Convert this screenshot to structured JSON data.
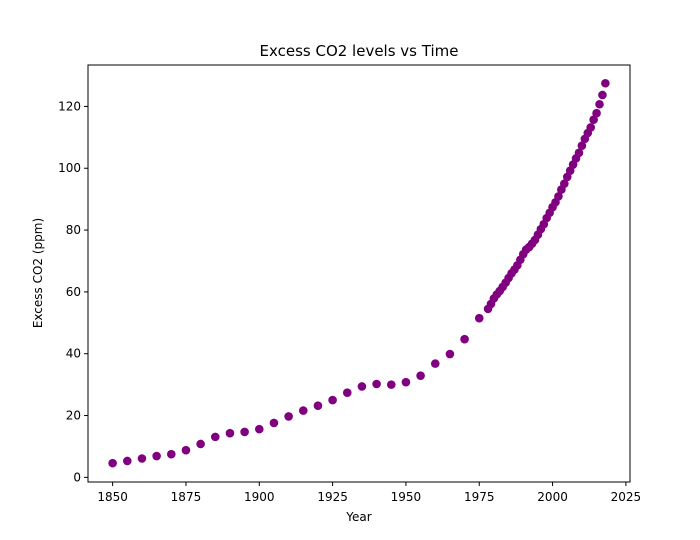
{
  "chart_data": {
    "type": "scatter",
    "title": "Excess CO2 levels vs Time",
    "xlabel": "Year",
    "ylabel": "Excess CO2 (ppm)",
    "xlim": [
      1841.6,
      2026.4
    ],
    "ylim": [
      -1.5,
      133.4
    ],
    "xticks": [
      1850,
      1875,
      1900,
      1925,
      1950,
      1975,
      2000,
      2025
    ],
    "yticks": [
      0,
      20,
      40,
      60,
      80,
      100,
      120
    ],
    "grid": false,
    "legend": "none",
    "marker_color": "#800080",
    "points": [
      [
        1850,
        4.6
      ],
      [
        1855,
        5.3
      ],
      [
        1860,
        6.1
      ],
      [
        1865,
        6.9
      ],
      [
        1870,
        7.5
      ],
      [
        1875,
        8.8
      ],
      [
        1880,
        10.8
      ],
      [
        1885,
        13.1
      ],
      [
        1890,
        14.3
      ],
      [
        1895,
        14.7
      ],
      [
        1900,
        15.6
      ],
      [
        1905,
        17.6
      ],
      [
        1910,
        19.7
      ],
      [
        1915,
        21.6
      ],
      [
        1920,
        23.2
      ],
      [
        1925,
        25.0
      ],
      [
        1930,
        27.4
      ],
      [
        1935,
        29.4
      ],
      [
        1940,
        30.2
      ],
      [
        1945,
        30.0
      ],
      [
        1950,
        30.8
      ],
      [
        1955,
        32.9
      ],
      [
        1960,
        36.8
      ],
      [
        1965,
        39.9
      ],
      [
        1970,
        44.7
      ],
      [
        1975,
        51.5
      ],
      [
        1978,
        54.5
      ],
      [
        1979,
        56.1
      ],
      [
        1980,
        57.9
      ],
      [
        1981,
        59.2
      ],
      [
        1982,
        60.3
      ],
      [
        1983,
        61.6
      ],
      [
        1984,
        63.0
      ],
      [
        1985,
        64.5
      ],
      [
        1986,
        66.0
      ],
      [
        1987,
        67.2
      ],
      [
        1988,
        68.6
      ],
      [
        1989,
        70.4
      ],
      [
        1990,
        72.2
      ],
      [
        1991,
        73.7
      ],
      [
        1992,
        74.5
      ],
      [
        1993,
        75.6
      ],
      [
        1994,
        76.8
      ],
      [
        1995,
        78.5
      ],
      [
        1996,
        80.3
      ],
      [
        1997,
        81.9
      ],
      [
        1998,
        83.9
      ],
      [
        1999,
        85.6
      ],
      [
        2000,
        87.4
      ],
      [
        2001,
        89.0
      ],
      [
        2002,
        90.9
      ],
      [
        2003,
        93.1
      ],
      [
        2004,
        95.0
      ],
      [
        2005,
        97.2
      ],
      [
        2006,
        99.2
      ],
      [
        2007,
        101.2
      ],
      [
        2008,
        103.2
      ],
      [
        2009,
        105.0
      ],
      [
        2010,
        107.3
      ],
      [
        2011,
        109.5
      ],
      [
        2012,
        111.4
      ],
      [
        2013,
        113.2
      ],
      [
        2014,
        115.7
      ],
      [
        2015,
        117.8
      ],
      [
        2016,
        120.7
      ],
      [
        2017,
        123.7
      ],
      [
        2018,
        127.5
      ]
    ]
  }
}
